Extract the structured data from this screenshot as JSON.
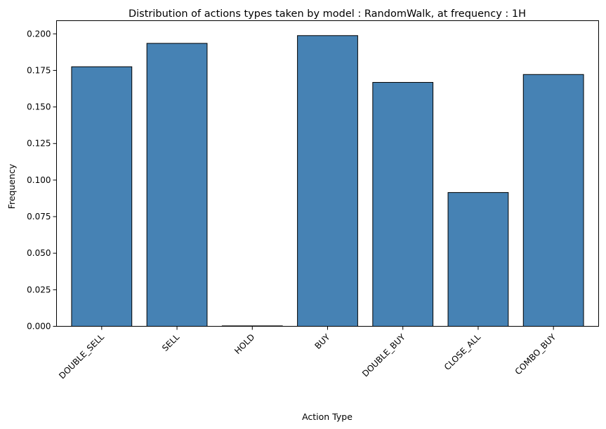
{
  "chart_data": {
    "type": "bar",
    "title": "Distribution of actions types taken by model : RandomWalk, at frequency : 1H",
    "xlabel": "Action Type",
    "ylabel": "Frequency",
    "categories": [
      "DOUBLE_SELL",
      "SELL",
      "HOLD",
      "BUY",
      "DOUBLE_BUY",
      "CLOSE_ALL",
      "COMBO_BUY"
    ],
    "values": [
      0.1775,
      0.1935,
      0.0,
      0.1988,
      0.1668,
      0.0915,
      0.1722
    ],
    "ylim": [
      0,
      0.209
    ],
    "yticks": [
      "0.000",
      "0.025",
      "0.050",
      "0.075",
      "0.100",
      "0.125",
      "0.150",
      "0.175",
      "0.200"
    ],
    "bar_color": "#4682b4",
    "edge_color": "#000000",
    "grid": false,
    "legend": "none"
  }
}
